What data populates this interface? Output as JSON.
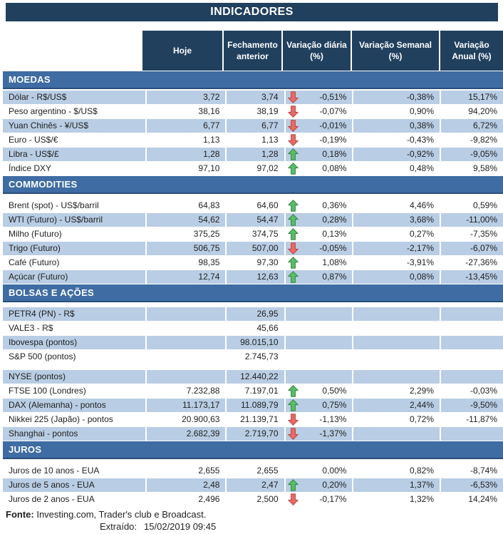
{
  "title": "INDICADORES",
  "colors": {
    "header_navy": "#21405e",
    "section_blue": "#3e6ca3",
    "band_blue": "#b9cde4",
    "arrow_up_green": "#58be68",
    "arrow_up_border": "#3b8a49",
    "arrow_down_red": "#e96b66",
    "arrow_down_border": "#bb4a45"
  },
  "chart_data": {
    "type": "table",
    "title": "INDICADORES",
    "columns": [
      "Hoje",
      "Fechamento\nanterior",
      "Variação diária\n(%)",
      "Variação Semanal\n(%)",
      "Variação\nAnual (%)"
    ],
    "sections": [
      {
        "name": "MOEDAS",
        "rows": [
          {
            "label": "Dólar - R$/US$",
            "hoje": "3,72",
            "fechamento": "3,74",
            "arrow": "down",
            "diaria": "-0,51%",
            "semanal": "-0,38%",
            "anual": "15,17%",
            "shade": true
          },
          {
            "label": "Peso argentino - $/US$",
            "hoje": "38,16",
            "fechamento": "38,19",
            "arrow": "down",
            "diaria": "-0,07%",
            "semanal": "0,90%",
            "anual": "94,20%",
            "shade": false
          },
          {
            "label": "Yuan Chinês - ¥/US$",
            "hoje": "6,77",
            "fechamento": "6,77",
            "arrow": "down",
            "diaria": "-0,01%",
            "semanal": "0,38%",
            "anual": "6,72%",
            "shade": true
          },
          {
            "label": "Euro - US$/€",
            "hoje": "1,13",
            "fechamento": "1,13",
            "arrow": "down",
            "diaria": "-0,19%",
            "semanal": "-0,43%",
            "anual": "-9,82%",
            "shade": false
          },
          {
            "label": "Libra - US$/£",
            "hoje": "1,28",
            "fechamento": "1,28",
            "arrow": "up",
            "diaria": "0,18%",
            "semanal": "-0,92%",
            "anual": "-9,05%",
            "shade": true
          },
          {
            "label": "Índice DXY",
            "hoje": "97,10",
            "fechamento": "97,02",
            "arrow": "up",
            "diaria": "0,08%",
            "semanal": "0,48%",
            "anual": "9,58%",
            "shade": false
          }
        ]
      },
      {
        "name": "COMMODITIES",
        "rows": [
          {
            "label": "Brent (spot) - US$/barril",
            "hoje": "64,83",
            "fechamento": "64,60",
            "arrow": "up",
            "diaria": "0,36%",
            "semanal": "4,46%",
            "anual": "0,59%",
            "shade": false
          },
          {
            "label": "WTI (Futuro) - US$/barril",
            "hoje": "54,62",
            "fechamento": "54,47",
            "arrow": "up",
            "diaria": "0,28%",
            "semanal": "3,68%",
            "anual": "-11,00%",
            "shade": true
          },
          {
            "label": "Milho (Futuro)",
            "hoje": "375,25",
            "fechamento": "374,75",
            "arrow": "up",
            "diaria": "0,13%",
            "semanal": "0,27%",
            "anual": "-7,35%",
            "shade": false
          },
          {
            "label": "Trigo (Futuro)",
            "hoje": "506,75",
            "fechamento": "507,00",
            "arrow": "down",
            "diaria": "-0,05%",
            "semanal": "-2,17%",
            "anual": "-6,07%",
            "shade": true
          },
          {
            "label": "Café (Futuro)",
            "hoje": "98,35",
            "fechamento": "97,30",
            "arrow": "up",
            "diaria": "1,08%",
            "semanal": "-3,91%",
            "anual": "-27,36%",
            "shade": false
          },
          {
            "label": "Açúcar (Futuro)",
            "hoje": "12,74",
            "fechamento": "12,63",
            "arrow": "up",
            "diaria": "0,87%",
            "semanal": "0,08%",
            "anual": "-13,45%",
            "shade": true
          }
        ]
      },
      {
        "name": "BOLSAS E AÇÕES",
        "rows": [
          {
            "label": "PETR4 (PN) - R$",
            "hoje": "",
            "fechamento": "26,95",
            "arrow": null,
            "diaria": "",
            "semanal": "",
            "anual": "",
            "shade": true
          },
          {
            "label": "VALE3 - R$",
            "hoje": "",
            "fechamento": "45,66",
            "arrow": null,
            "diaria": "",
            "semanal": "",
            "anual": "",
            "shade": false
          },
          {
            "label": "Ibovespa (pontos)",
            "hoje": "",
            "fechamento": "98.015,10",
            "arrow": null,
            "diaria": "",
            "semanal": "",
            "anual": "",
            "shade": true
          },
          {
            "label": "S&P 500 (pontos)",
            "hoje": "",
            "fechamento": "2.745,73",
            "arrow": null,
            "diaria": "",
            "semanal": "",
            "anual": "",
            "shade": false
          },
          {
            "spacer": true
          },
          {
            "label": "NYSE (pontos)",
            "hoje": "",
            "fechamento": "12.440,22",
            "arrow": null,
            "diaria": "",
            "semanal": "",
            "anual": "",
            "shade": true
          },
          {
            "label": "FTSE 100 (Londres)",
            "hoje": "7.232,88",
            "fechamento": "7.197,01",
            "arrow": "up",
            "diaria": "0,50%",
            "semanal": "2,29%",
            "anual": "-0,03%",
            "shade": false
          },
          {
            "label": "DAX (Alemanha) - pontos",
            "hoje": "11.173,17",
            "fechamento": "11.089,79",
            "arrow": "up",
            "diaria": "0,75%",
            "semanal": "2,44%",
            "anual": "-9,50%",
            "shade": true
          },
          {
            "label": "Nikkei 225 (Japão) - pontos",
            "hoje": "20.900,63",
            "fechamento": "21.139,71",
            "arrow": "down",
            "diaria": "-1,13%",
            "semanal": "0,72%",
            "anual": "-11,87%",
            "shade": false
          },
          {
            "label": "Shanghai - pontos",
            "hoje": "2.682,39",
            "fechamento": "2.719,70",
            "arrow": "down",
            "diaria": "-1,37%",
            "semanal": "",
            "anual": "",
            "shade": true
          }
        ]
      },
      {
        "name": "JUROS",
        "rows": [
          {
            "label": "Juros de 10 anos - EUA",
            "hoje": "2,655",
            "fechamento": "2,655",
            "arrow": null,
            "diaria": "0,00%",
            "semanal": "0,82%",
            "anual": "-8,74%",
            "shade": false
          },
          {
            "label": "Juros de 5 anos - EUA",
            "hoje": "2,48",
            "fechamento": "2,47",
            "arrow": "up",
            "diaria": "0,20%",
            "semanal": "1,37%",
            "anual": "-6,53%",
            "shade": true
          },
          {
            "label": "Juros de 2 anos - EUA",
            "hoje": "2,496",
            "fechamento": "2,500",
            "arrow": "down",
            "diaria": "-0,17%",
            "semanal": "1,32%",
            "anual": "14,24%",
            "shade": false
          }
        ]
      }
    ]
  },
  "footer": {
    "fonte_label": "Fonte:",
    "fonte_text": " Investing.com, Trader's club e Broadcast.",
    "extraido_label": "Extraído:",
    "extraido_value": "15/02/2019 09:45"
  }
}
